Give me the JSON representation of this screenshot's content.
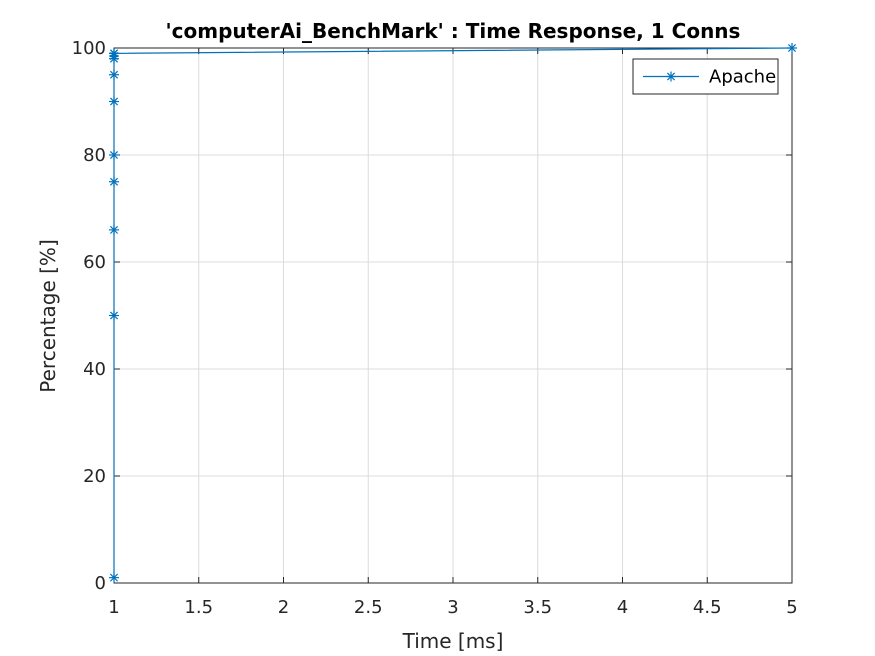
{
  "chart_data": {
    "type": "line",
    "title": "'computerAi_BenchMark' : Time Response, 1 Conns",
    "xlabel": "Time [ms]",
    "ylabel": "Percentage [%]",
    "xlim": [
      1,
      5
    ],
    "ylim": [
      0,
      100
    ],
    "xticks": [
      1,
      1.5,
      2,
      2.5,
      3,
      3.5,
      4,
      4.5,
      5
    ],
    "xtick_labels": [
      "1",
      "1.5",
      "2",
      "2.5",
      "3",
      "3.5",
      "4",
      "4.5",
      "5"
    ],
    "yticks": [
      0,
      20,
      40,
      60,
      80,
      100
    ],
    "ytick_labels": [
      "0",
      "20",
      "40",
      "60",
      "80",
      "100"
    ],
    "grid": true,
    "legend": {
      "position": "top-right",
      "entries": [
        "Apache"
      ]
    },
    "series": [
      {
        "name": "Apache",
        "color": "#0072BD",
        "marker": "asterisk",
        "x": [
          1,
          1,
          1,
          1,
          1,
          1,
          1,
          1,
          1,
          1,
          1,
          5
        ],
        "y": [
          1,
          50,
          66,
          75,
          80,
          90,
          95,
          98,
          98.5,
          99,
          99,
          100
        ]
      }
    ]
  }
}
